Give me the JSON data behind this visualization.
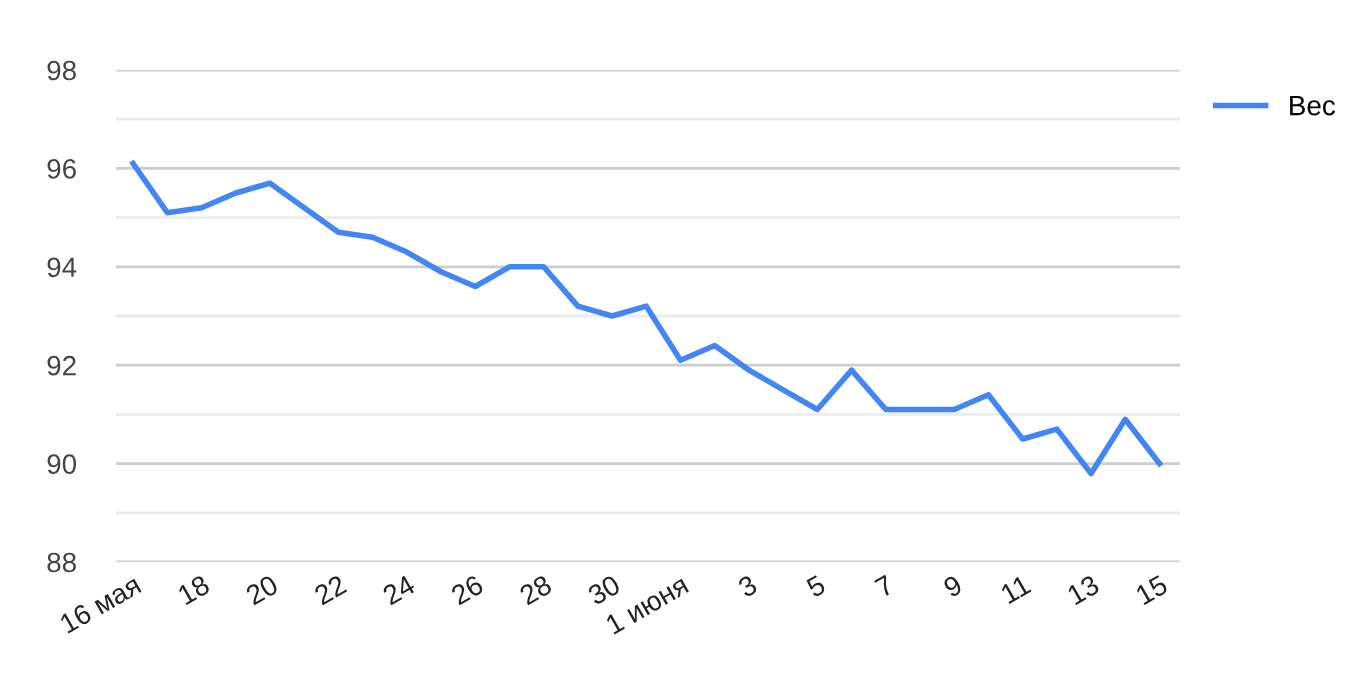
{
  "chart_data": {
    "type": "line",
    "categories": [
      "16 мая",
      null,
      "18",
      null,
      "20",
      null,
      "22",
      null,
      "24",
      null,
      "26",
      null,
      "28",
      null,
      "30",
      null,
      "1 июня",
      null,
      "3",
      null,
      "5",
      null,
      "7",
      null,
      "9",
      null,
      "11",
      null,
      "13",
      null,
      "15"
    ],
    "series": [
      {
        "name": "Вес",
        "color": "#4285f4",
        "values": [
          96.1,
          95.1,
          95.2,
          95.5,
          95.7,
          95.2,
          94.7,
          94.6,
          94.3,
          93.9,
          93.6,
          94.0,
          94.0,
          93.2,
          93.0,
          93.2,
          92.1,
          92.4,
          91.9,
          91.5,
          91.1,
          91.9,
          91.1,
          91.1,
          91.1,
          91.4,
          90.5,
          90.7,
          89.8,
          90.9,
          90.0
        ]
      }
    ],
    "ylim": [
      88,
      98
    ],
    "yticks": [
      88,
      {
        "value": 89,
        "label": null
      },
      90,
      {
        "value": 91,
        "label": null
      },
      92,
      {
        "value": 93,
        "label": null
      },
      94,
      {
        "value": 95,
        "label": null
      },
      96,
      {
        "value": 97,
        "label": null
      },
      98
    ],
    "grid": "y",
    "legend": "top right",
    "marker": "none",
    "line_style": "solid"
  }
}
